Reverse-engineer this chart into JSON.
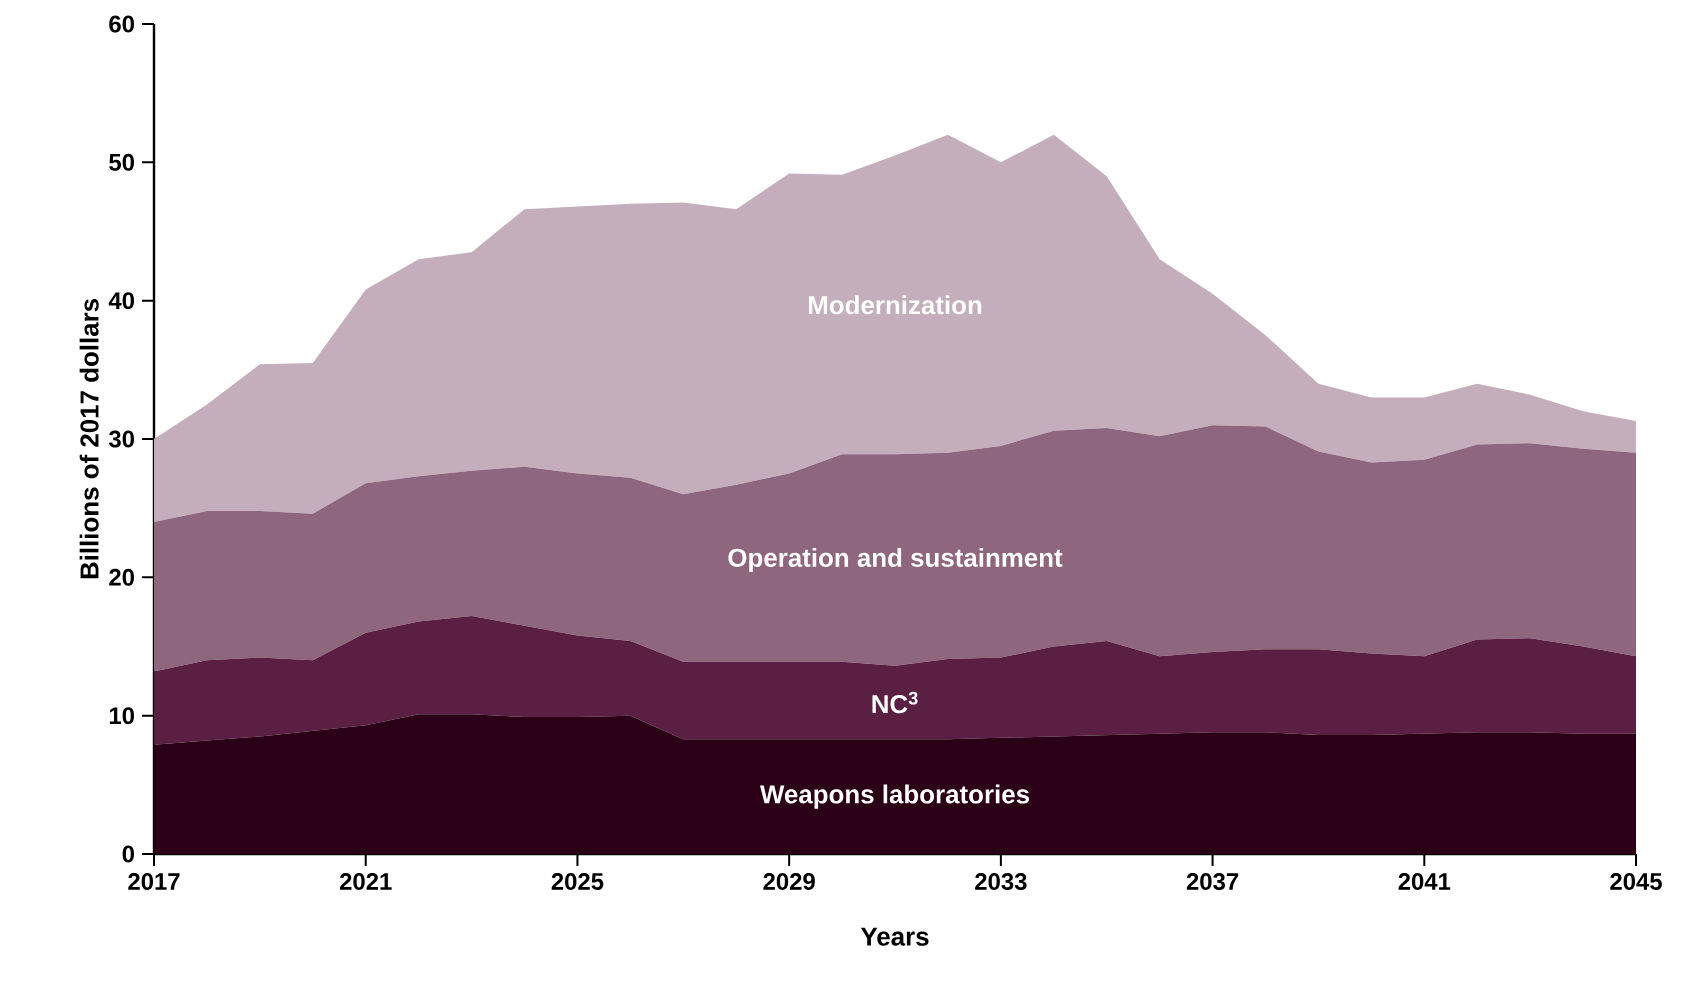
{
  "chart_data": {
    "type": "area",
    "stacked": true,
    "xlabel": "Years",
    "ylabel": "Billions of 2017 dollars",
    "x": [
      2017,
      2018,
      2019,
      2020,
      2021,
      2022,
      2023,
      2024,
      2025,
      2026,
      2027,
      2028,
      2029,
      2030,
      2031,
      2032,
      2033,
      2034,
      2035,
      2036,
      2037,
      2038,
      2039,
      2040,
      2041,
      2042,
      2043,
      2044,
      2045
    ],
    "xlim": [
      2017,
      2045
    ],
    "xticks": [
      2017,
      2021,
      2025,
      2029,
      2033,
      2037,
      2041,
      2045
    ],
    "ylim": [
      0,
      60
    ],
    "yticks": [
      0,
      10,
      20,
      30,
      40,
      50,
      60
    ],
    "series": [
      {
        "name": "Weapons laboratories",
        "color": "#2b0016",
        "values": [
          7.9,
          8.2,
          8.5,
          8.9,
          9.3,
          10.1,
          10.1,
          9.9,
          9.9,
          10.0,
          8.3,
          8.3,
          8.3,
          8.3,
          8.3,
          8.3,
          8.4,
          8.5,
          8.6,
          8.7,
          8.8,
          8.8,
          8.6,
          8.6,
          8.7,
          8.8,
          8.8,
          8.7,
          8.7
        ]
      },
      {
        "name": "NC$^{3}$",
        "color": "#5a1f42",
        "values": [
          5.3,
          5.8,
          5.7,
          5.1,
          6.7,
          6.7,
          7.1,
          6.6,
          5.9,
          5.4,
          5.6,
          5.6,
          5.6,
          5.6,
          5.3,
          5.8,
          5.8,
          6.5,
          6.8,
          5.6,
          5.8,
          6.0,
          6.2,
          5.9,
          5.6,
          6.7,
          6.8,
          6.3,
          5.6
        ]
      },
      {
        "name": "Operation and sustainment",
        "color": "#8e667d",
        "values": [
          10.8,
          10.8,
          10.6,
          10.6,
          10.8,
          10.5,
          10.5,
          11.5,
          11.7,
          11.8,
          12.1,
          12.8,
          13.6,
          15.0,
          15.3,
          14.9,
          15.3,
          15.6,
          15.4,
          15.9,
          16.4,
          16.1,
          14.3,
          13.8,
          14.2,
          14.1,
          14.1,
          14.3,
          14.7
        ]
      },
      {
        "name": "Modernization",
        "color": "#c4aebb",
        "values": [
          6.0,
          7.7,
          10.6,
          10.9,
          14.0,
          15.7,
          15.8,
          18.6,
          19.3,
          19.8,
          21.1,
          19.9,
          21.7,
          20.2,
          21.6,
          23.0,
          20.5,
          21.4,
          18.2,
          12.8,
          9.5,
          6.6,
          4.9,
          4.7,
          4.5,
          4.4,
          3.5,
          2.7,
          2.3
        ]
      }
    ]
  }
}
